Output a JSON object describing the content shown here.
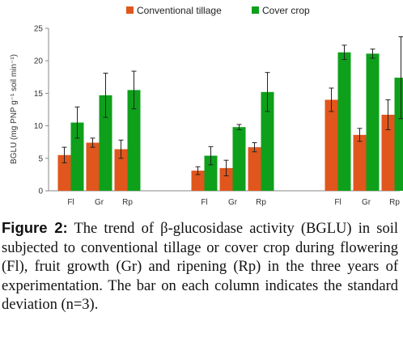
{
  "chart_data": {
    "type": "bar",
    "ylabel": "BGLU (mg PNP g⁻¹ soil min⁻¹)",
    "ylim": [
      0,
      25
    ],
    "yticks": [
      0,
      5,
      10,
      15,
      20,
      25
    ],
    "grid": false,
    "legend_position": "top",
    "groups": [
      {
        "categories": [
          "Fl",
          "Gr",
          "Rp"
        ]
      },
      {
        "categories": [
          "Fl",
          "Gr",
          "Rp"
        ]
      },
      {
        "categories": [
          "Fl",
          "Gr",
          "Rp"
        ]
      }
    ],
    "series": [
      {
        "name": "Conventional tillage",
        "color": "#e0561c",
        "values": [
          5.5,
          7.4,
          6.4,
          3.1,
          3.5,
          6.7,
          14.0,
          8.6,
          11.7
        ],
        "errors": [
          1.2,
          0.7,
          1.4,
          0.6,
          1.2,
          0.7,
          1.8,
          1.0,
          2.3
        ]
      },
      {
        "name": "Cover crop",
        "color": "#0ea01b",
        "values": [
          10.5,
          14.7,
          15.5,
          5.4,
          9.8,
          15.2,
          21.3,
          21.1,
          17.4
        ],
        "errors": [
          2.4,
          3.4,
          2.9,
          1.4,
          0.4,
          3.0,
          1.1,
          0.7,
          6.3
        ]
      }
    ]
  },
  "caption": {
    "label": "Figure 2:",
    "text": " The trend of β-glucosidase activity (BGLU) in soil subjected to conventional tillage or cover crop during flowering (Fl), fruit growth (Gr) and ripening (Rp) in the three years of experimentation. The bar on each column indicates the standard deviation (n=3)."
  }
}
